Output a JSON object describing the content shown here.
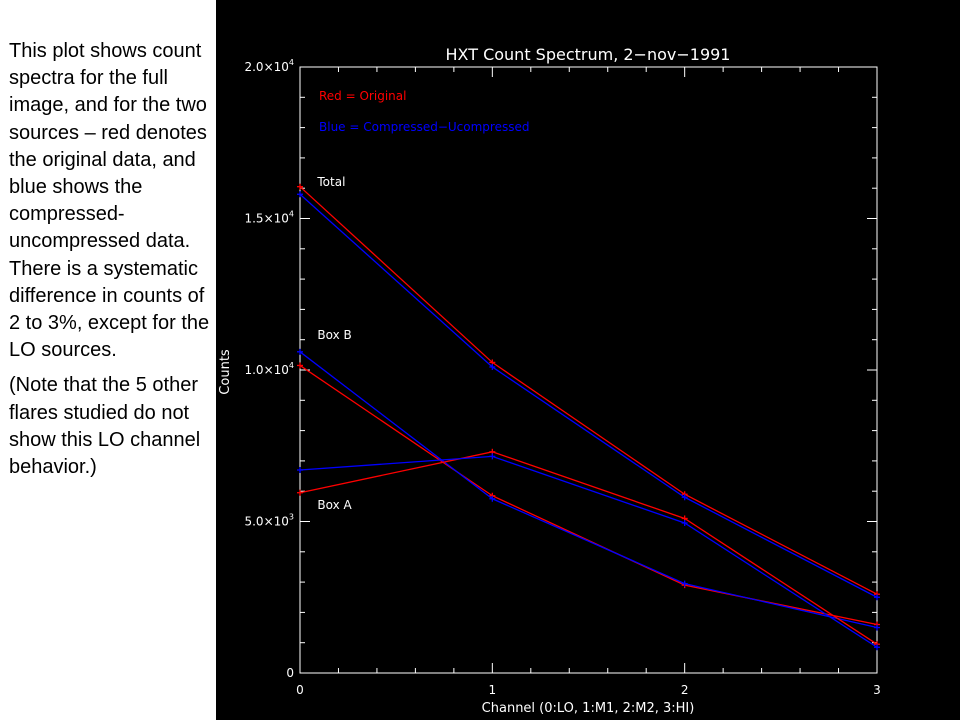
{
  "caption": {
    "paragraph_1": "This plot shows count spectra for the full image, and for the two sources – red denotes the original data, and blue shows the compressed-uncompressed data. There is a systematic difference in counts of 2 to 3%, except for the LO sources.",
    "paragraph_2": "(Note that the 5 other flares studied do not show this LO channel behavior.)"
  },
  "chart_data": {
    "type": "line",
    "title": "HXT Count Spectrum, 2−nov−1991",
    "xlabel": "Channel (0:LO, 1:M1, 2:M2, 3:HI)",
    "ylabel": "Counts",
    "xlim": [
      0,
      3
    ],
    "ylim": [
      0,
      20000
    ],
    "x_ticks": [
      0,
      1,
      2,
      3
    ],
    "x_tick_labels": [
      "0",
      "1",
      "2",
      "3"
    ],
    "y_ticks": [
      {
        "value": 0,
        "mantissa": "0",
        "exponent": ""
      },
      {
        "value": 5000,
        "mantissa": "5.0×10",
        "exponent": "3"
      },
      {
        "value": 10000,
        "mantissa": "1.0×10",
        "exponent": "4"
      },
      {
        "value": 15000,
        "mantissa": "1.5×10",
        "exponent": "4"
      },
      {
        "value": 20000,
        "mantissa": "2.0×10",
        "exponent": "4"
      }
    ],
    "legend": [
      {
        "text": "Red = Original",
        "color": "#ff0000"
      },
      {
        "text": "Blue = Compressed−Ucompressed",
        "color": "#0000ff"
      }
    ],
    "annotations": [
      {
        "text": "Total",
        "x": 0.08,
        "y": 16200
      },
      {
        "text": "Box B",
        "x": 0.08,
        "y": 11150
      },
      {
        "text": "Box A",
        "x": 0.08,
        "y": 5550
      }
    ],
    "x": [
      0,
      1,
      2,
      3
    ],
    "series": [
      {
        "group": "Total",
        "kind": "Original",
        "color": "#ff0000",
        "values": [
          16050,
          10250,
          5900,
          2600
        ]
      },
      {
        "group": "Total",
        "kind": "Compressed−Ucompressed",
        "color": "#0000ff",
        "values": [
          15800,
          10100,
          5800,
          2500
        ]
      },
      {
        "group": "Box B",
        "kind": "Original",
        "color": "#ff0000",
        "values": [
          10150,
          5850,
          2900,
          1600
        ]
      },
      {
        "group": "Box B",
        "kind": "Compressed−Ucompressed",
        "color": "#0000ff",
        "values": [
          10600,
          5750,
          2950,
          1500
        ]
      },
      {
        "group": "Box A",
        "kind": "Original",
        "color": "#ff0000",
        "values": [
          5950,
          7300,
          5100,
          950
        ]
      },
      {
        "group": "Box A",
        "kind": "Compressed−Ucompressed",
        "color": "#0000ff",
        "values": [
          6700,
          7150,
          4950,
          850
        ]
      }
    ]
  }
}
